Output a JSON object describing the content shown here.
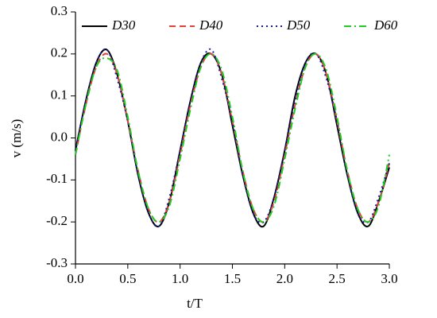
{
  "chart_data": {
    "type": "line",
    "xlabel": "t/T",
    "ylabel": "v (m/s)",
    "x": [
      0.0,
      0.1,
      0.2,
      0.3,
      0.4,
      0.5,
      0.6,
      0.7,
      0.8,
      0.9,
      1.0,
      1.1,
      1.2,
      1.3,
      1.4,
      1.5,
      1.6,
      1.7,
      1.8,
      1.9,
      2.0,
      2.1,
      2.2,
      2.3,
      2.4,
      2.5,
      2.6,
      2.7,
      2.8,
      2.9,
      3.0
    ],
    "series": [
      {
        "name": "D30",
        "color": "#000000",
        "linestyle": "solid",
        "values": [
          -0.03,
          0.09,
          0.18,
          0.21,
          0.15,
          0.04,
          -0.09,
          -0.18,
          -0.21,
          -0.15,
          -0.03,
          0.09,
          0.18,
          0.2,
          0.15,
          0.03,
          -0.09,
          -0.18,
          -0.21,
          -0.14,
          -0.03,
          0.1,
          0.18,
          0.2,
          0.15,
          0.03,
          -0.09,
          -0.18,
          -0.21,
          -0.15,
          -0.07
        ]
      },
      {
        "name": "D40",
        "color": "#e8403a",
        "linestyle": "dashed",
        "values": [
          -0.04,
          0.08,
          0.17,
          0.2,
          0.15,
          0.04,
          -0.08,
          -0.17,
          -0.2,
          -0.15,
          -0.04,
          0.08,
          0.17,
          0.2,
          0.15,
          0.04,
          -0.08,
          -0.17,
          -0.2,
          -0.15,
          -0.04,
          0.08,
          0.17,
          0.2,
          0.15,
          0.04,
          -0.08,
          -0.17,
          -0.2,
          -0.15,
          -0.06
        ]
      },
      {
        "name": "D50",
        "color": "#1a1aa8",
        "linestyle": "dotted",
        "values": [
          -0.03,
          0.09,
          0.18,
          0.21,
          0.14,
          0.04,
          -0.09,
          -0.18,
          -0.21,
          -0.14,
          -0.03,
          0.09,
          0.18,
          0.21,
          0.14,
          0.04,
          -0.09,
          -0.18,
          -0.2,
          -0.14,
          -0.03,
          0.09,
          0.18,
          0.2,
          0.14,
          0.04,
          -0.09,
          -0.18,
          -0.2,
          -0.14,
          -0.06
        ]
      },
      {
        "name": "D60",
        "color": "#22cc22",
        "linestyle": "dashdot",
        "values": [
          -0.04,
          0.08,
          0.17,
          0.19,
          0.16,
          0.05,
          -0.08,
          -0.17,
          -0.2,
          -0.16,
          -0.05,
          0.07,
          0.17,
          0.2,
          0.16,
          0.05,
          -0.08,
          -0.17,
          -0.2,
          -0.16,
          -0.05,
          0.07,
          0.17,
          0.2,
          0.16,
          0.05,
          -0.08,
          -0.17,
          -0.2,
          -0.16,
          -0.04
        ]
      }
    ],
    "xlim": [
      0,
      3
    ],
    "xticks": [
      {
        "value": 0,
        "label": "0.0"
      },
      0.5,
      {
        "value": 1,
        "label": "1.0"
      },
      1.5,
      {
        "value": 2,
        "label": "2.0"
      },
      2.5,
      {
        "value": 3,
        "label": "3.0"
      }
    ],
    "ylim": [
      -0.3,
      0.3
    ],
    "yticks": [
      -0.3,
      -0.2,
      -0.1,
      {
        "value": 0,
        "label": "0.0"
      },
      0.1,
      0.2,
      0.3
    ],
    "legend": "top"
  }
}
